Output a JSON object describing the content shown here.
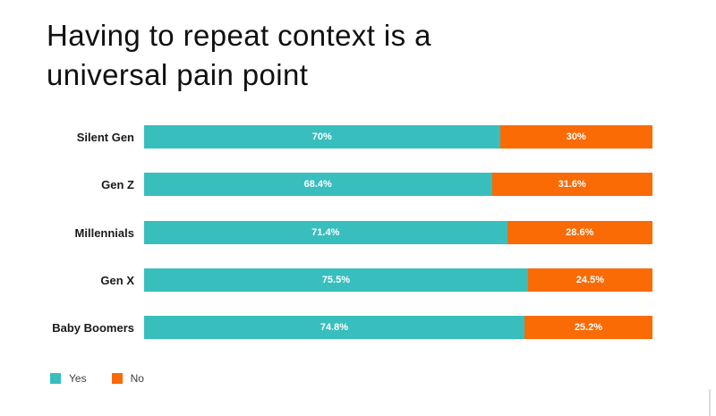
{
  "header": {
    "title_line1": "Having to repeat context is a",
    "title_line2": "universal pain point"
  },
  "chart_data": {
    "type": "bar",
    "orientation": "horizontal",
    "stacked": true,
    "title": "Having to repeat context is a universal pain point",
    "categories": [
      "Silent Gen",
      "Gen Z",
      "Millennials",
      "Gen X",
      "Baby Boomers"
    ],
    "series": [
      {
        "name": "Yes",
        "color": "#39BEBE",
        "values": [
          70,
          68.4,
          71.4,
          75.5,
          74.8
        ],
        "data_labels": [
          "70%",
          "68.4%",
          "71.4%",
          "75.5%",
          "74.8%"
        ]
      },
      {
        "name": "No",
        "color": "#FA6A05",
        "values": [
          30,
          31.6,
          28.6,
          24.5,
          25.2
        ],
        "data_labels": [
          "30%",
          "31.6%",
          "28.6%",
          "24.5%",
          "25.2%"
        ]
      }
    ],
    "xlim": [
      0,
      100
    ],
    "grid": false,
    "legend_position": "bottom-left",
    "data_label_color": "#ffffff"
  },
  "legend": {
    "items": [
      {
        "label": "Yes",
        "color": "#39BEBE"
      },
      {
        "label": "No",
        "color": "#FA6A05"
      }
    ]
  }
}
